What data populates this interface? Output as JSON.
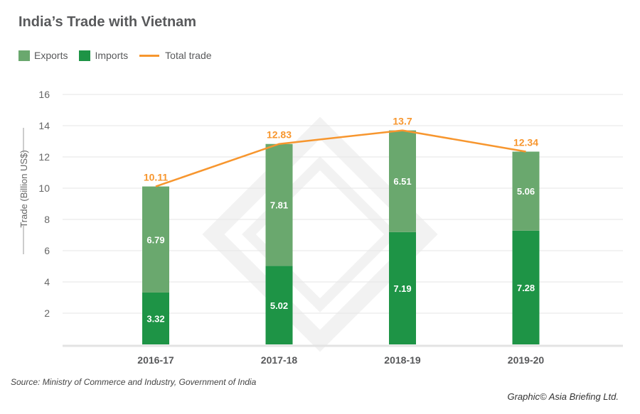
{
  "title": "India’s Trade with Vietnam",
  "legend": [
    {
      "label": "Exports",
      "color": "#6aa86e",
      "kind": "swatch"
    },
    {
      "label": "Imports",
      "color": "#1e9446",
      "kind": "swatch"
    },
    {
      "label": "Total trade",
      "color": "#f7962e",
      "kind": "line"
    }
  ],
  "source": "Source: Ministry of Commerce and Industry, Government of India",
  "credit": "Graphic© Asia Briefing Ltd.",
  "chart_data": {
    "type": "bar",
    "stacked": true,
    "title": "India’s Trade with Vietnam",
    "ylabel": "Trade (Billion US$)",
    "xlabel": "",
    "ylim": [
      0,
      16
    ],
    "yticks": [
      2,
      4,
      6,
      8,
      10,
      12,
      14,
      16
    ],
    "grid": true,
    "legend_position": "top-left",
    "categories": [
      "2016-17",
      "2017-18",
      "2018-19",
      "2019-20"
    ],
    "series": [
      {
        "name": "Imports",
        "type": "bar",
        "color": "#1e9446",
        "values": [
          3.32,
          5.02,
          7.19,
          7.28
        ]
      },
      {
        "name": "Exports",
        "type": "bar",
        "color": "#6aa86e",
        "values": [
          6.79,
          7.81,
          6.51,
          5.06
        ]
      },
      {
        "name": "Total trade",
        "type": "line",
        "color": "#f7962e",
        "values": [
          10.11,
          12.83,
          13.7,
          12.34
        ]
      }
    ]
  }
}
